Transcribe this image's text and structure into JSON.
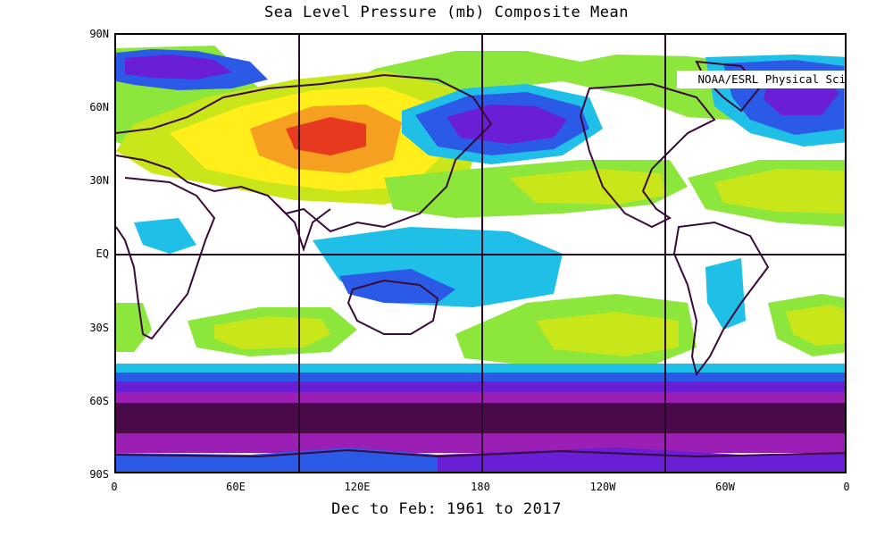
{
  "title": "Sea Level Pressure (mb) Composite Mean",
  "credit": "NOAA/ESRL Physical Sciences Division",
  "footer": "Dec to Feb: 1961 to 2017",
  "y_ticks": [
    "90N",
    "60N",
    "30N",
    "EQ",
    "30S",
    "60S",
    "90S"
  ],
  "x_ticks": [
    "0",
    "60E",
    "120E",
    "180",
    "120W",
    "60W",
    "0"
  ],
  "colors": {
    "very_high": "#e83a1e",
    "high_orange": "#f5a020",
    "high_yellow": "#ffee1a",
    "mid_yellowgreen": "#c8e61a",
    "mid_green": "#8ce63c",
    "neutral": "#ffffff",
    "low_cyan": "#1fbfe8",
    "low_blue": "#2a5ae6",
    "lower_purple": "#6a1fd6",
    "lowest_magenta": "#9b1fb5",
    "deepest": "#4a0a4a",
    "coastline": "#3a0a3a"
  }
}
